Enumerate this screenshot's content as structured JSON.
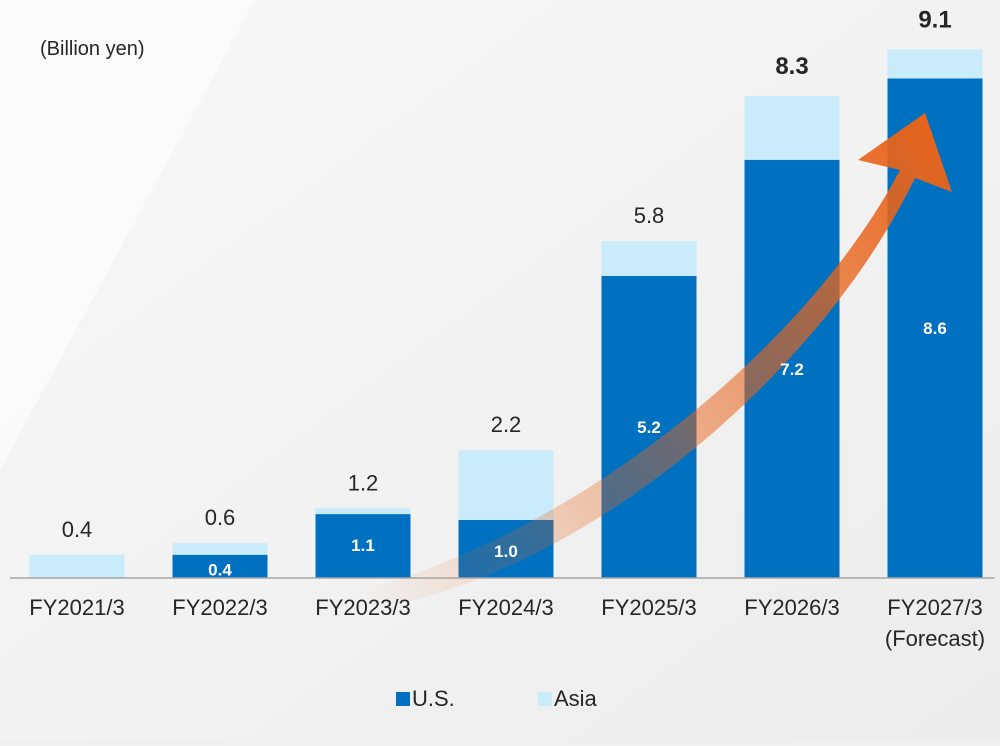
{
  "chart_data": {
    "type": "bar",
    "stacked": true,
    "unit_label": "(Billion yen)",
    "categories": [
      "FY2021/3",
      "FY2022/3",
      "FY2023/3",
      "FY2024/3",
      "FY2025/3",
      "FY2026/3",
      "FY2027/3"
    ],
    "category_sublabels": [
      "",
      "",
      "",
      "",
      "",
      "",
      "(Forecast)"
    ],
    "series": [
      {
        "name": "U.S.",
        "color": "#0070c0",
        "values": [
          0,
          0.4,
          1.1,
          1.0,
          5.2,
          7.2,
          8.6
        ],
        "labels": [
          "",
          "0.4",
          "1.1",
          "1.0",
          "5.2",
          "7.2",
          "8.6"
        ]
      },
      {
        "name": "Asia",
        "color": "#c9ebfa",
        "values": [
          0.4,
          0.2,
          0.1,
          1.2,
          0.6,
          1.1,
          0.5
        ]
      }
    ],
    "totals": [
      0.4,
      0.6,
      1.2,
      2.2,
      5.8,
      8.3,
      9.1
    ],
    "total_labels": [
      "0.4",
      "0.6",
      "1.2",
      "2.2",
      "5.8",
      "8.3",
      "9.1"
    ],
    "bold_total_indices": [
      5,
      6
    ],
    "ylim": [
      0,
      9.4
    ],
    "grid": false,
    "legend_position": "bottom-center",
    "trend_arrow": "rising",
    "arrow_color": "#e8641a"
  }
}
